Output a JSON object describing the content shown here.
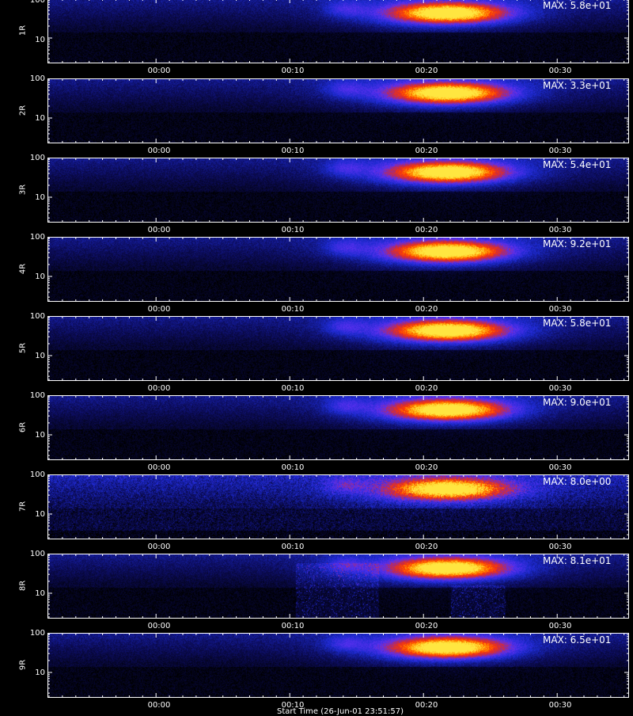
{
  "chart_data": {
    "type": "heatmap",
    "colormap": [
      "#000000",
      "#0c0c5a",
      "#1c2ad0",
      "#5a30f0",
      "#c42a4a",
      "#ff3a00",
      "#ff9a00",
      "#ffe640"
    ],
    "x_tick_labels": [
      "00:00",
      "00:10",
      "00:20",
      "00:30"
    ],
    "y_tick_labels": [
      "100",
      "10"
    ],
    "y_scale": "log",
    "xlabel": "Start Time (26-Jun-01 23:51:57)",
    "panels": [
      {
        "ylabel": "1R",
        "max_label": "MAX: 5.8e+01"
      },
      {
        "ylabel": "2R",
        "max_label": "MAX: 3.3e+01"
      },
      {
        "ylabel": "3R",
        "max_label": "MAX: 5.4e+01"
      },
      {
        "ylabel": "4R",
        "max_label": "MAX: 9.2e+01"
      },
      {
        "ylabel": "5R",
        "max_label": "MAX: 5.8e+01"
      },
      {
        "ylabel": "6R",
        "max_label": "MAX: 9.0e+01"
      },
      {
        "ylabel": "7R",
        "max_label": "MAX: 8.0e+00"
      },
      {
        "ylabel": "8R",
        "max_label": "MAX: 8.1e+01"
      },
      {
        "ylabel": "9R",
        "max_label": "MAX: 6.5e+01"
      }
    ]
  }
}
